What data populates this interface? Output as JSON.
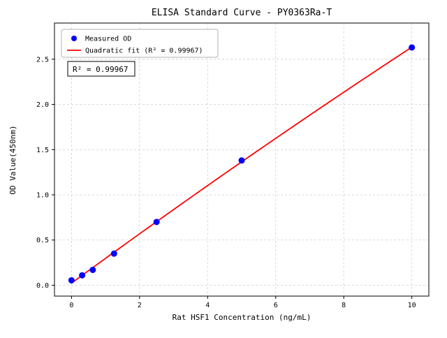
{
  "chart_data": {
    "type": "scatter",
    "title": "ELISA Standard Curve - PY0363Ra-T",
    "xlabel": "Rat HSF1 Concentration (ng/mL)",
    "ylabel": "OD Value(450nm)",
    "xlim": [
      -0.5,
      10.5
    ],
    "ylim": [
      -0.12,
      2.9
    ],
    "x_ticks": [
      0,
      2,
      4,
      6,
      8,
      10
    ],
    "y_ticks": [
      0.0,
      0.5,
      1.0,
      1.5,
      2.0,
      2.5
    ],
    "grid": true,
    "grid_color": "#cfcfcf",
    "legend_position": "upper-left",
    "series": [
      {
        "name": "Measured OD",
        "type": "scatter",
        "color": "#0000ff",
        "x": [
          0,
          0.313,
          0.625,
          1.25,
          2.5,
          5,
          10
        ],
        "y": [
          0.055,
          0.11,
          0.17,
          0.35,
          0.7,
          1.38,
          2.63
        ]
      },
      {
        "name": "Quadratic fit (R² = 0.99967)",
        "type": "quadratic-fit",
        "color": "#ff0000",
        "fit_of": "Measured OD"
      }
    ],
    "annotation": {
      "text": "R² = 0.99967"
    },
    "r_squared": 0.99967
  }
}
